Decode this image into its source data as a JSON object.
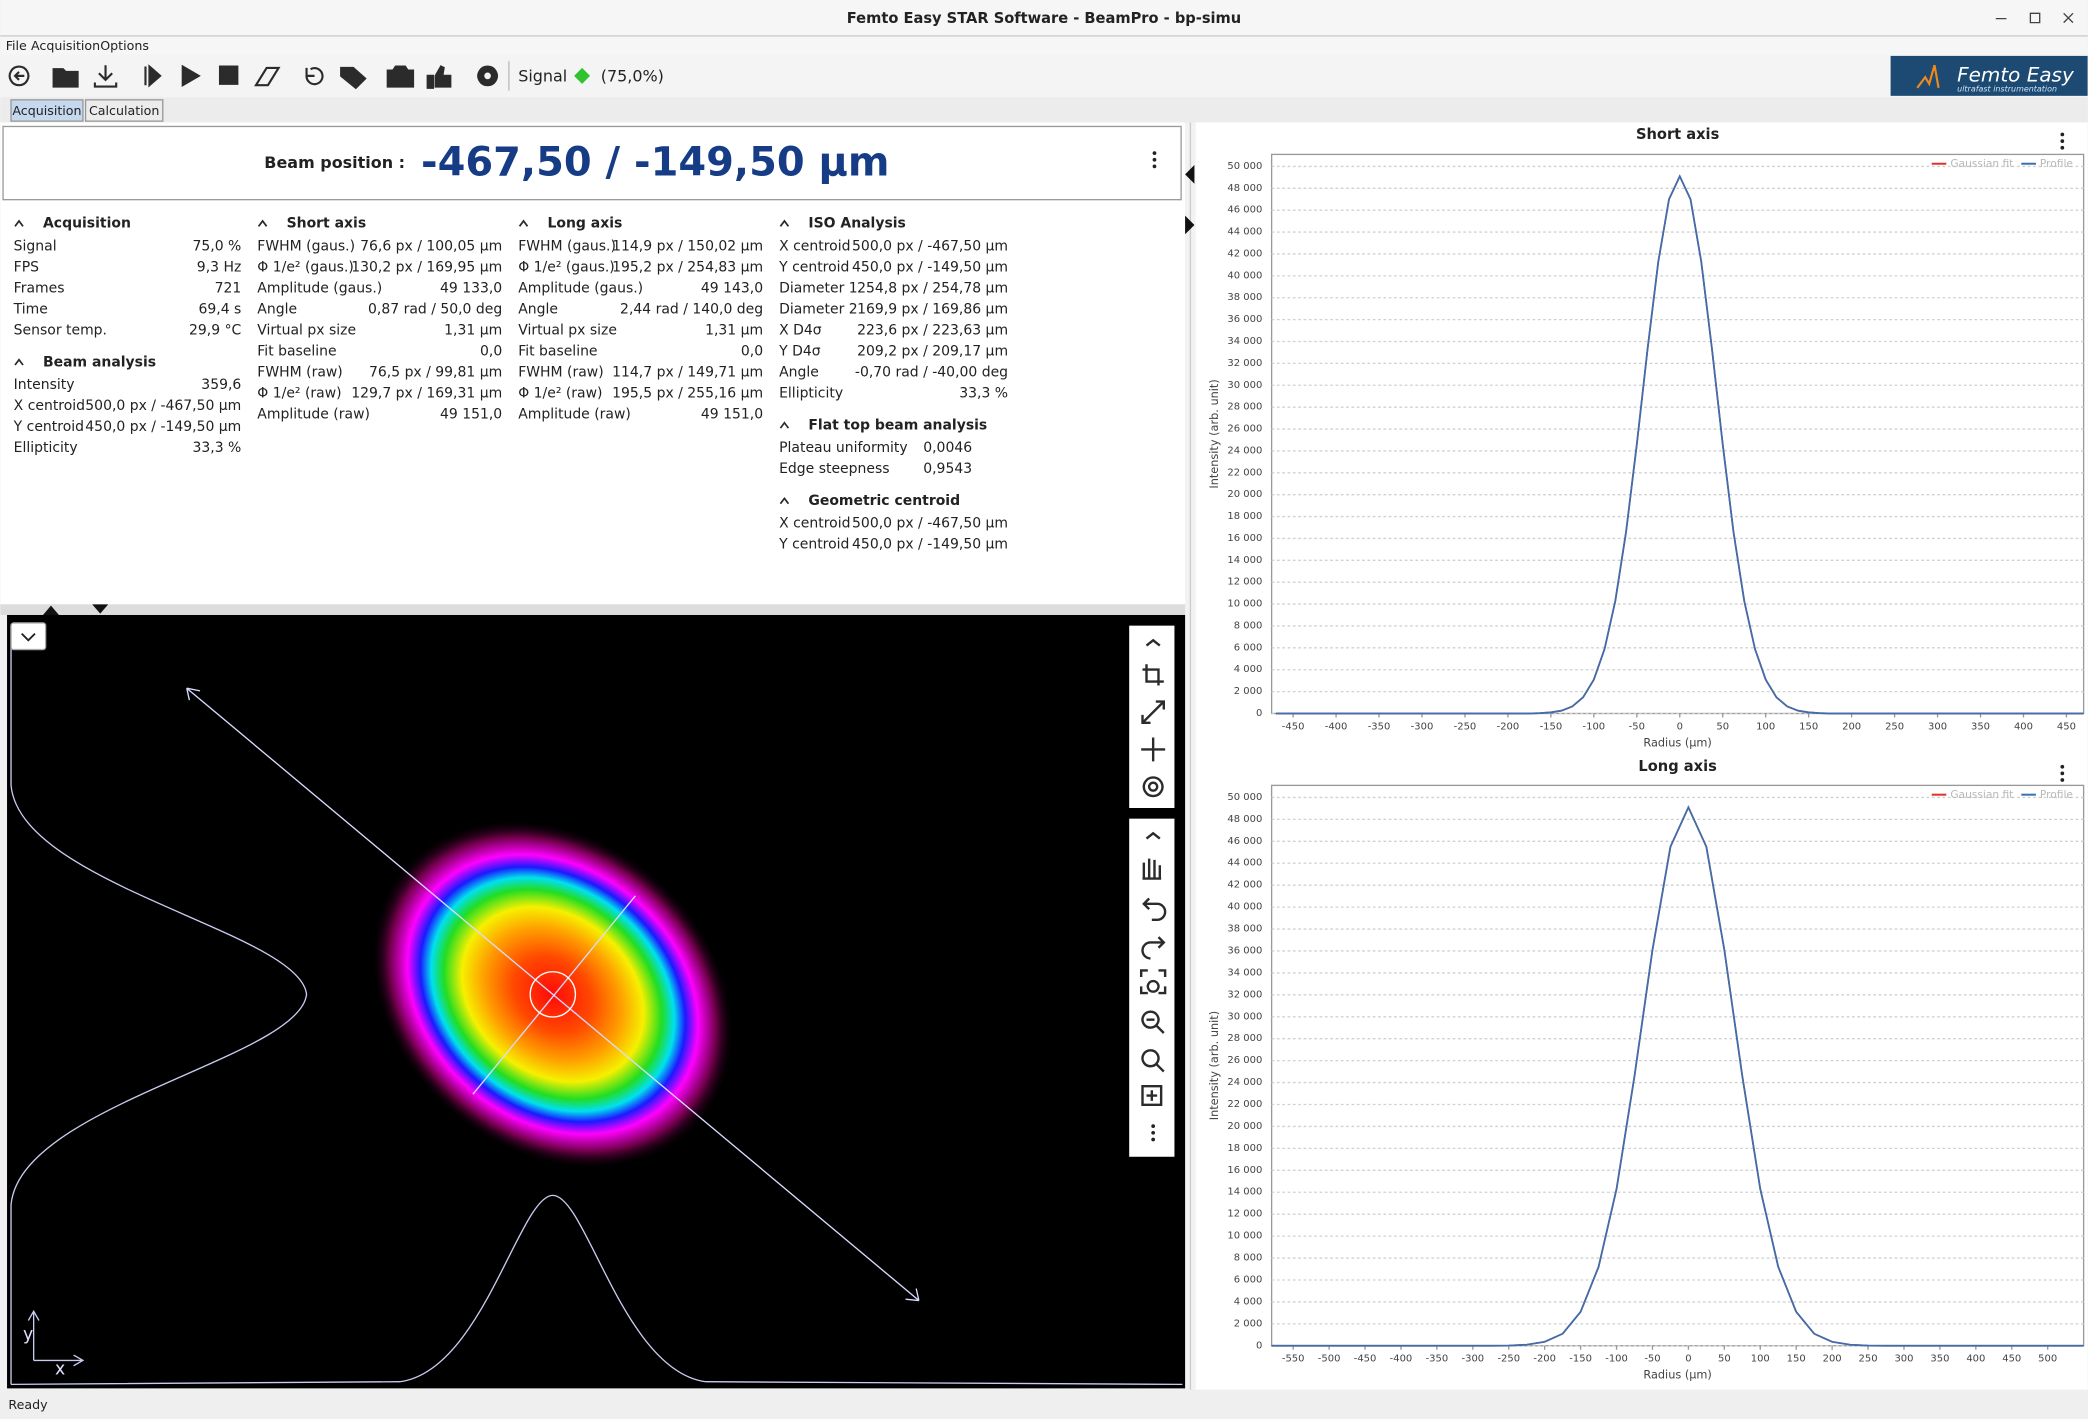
{
  "window": {
    "title": "Femto Easy STAR Software - BeamPro - bp-simu"
  },
  "menu": [
    "File",
    "Acquisition",
    "Options"
  ],
  "toolbar": {
    "signal_label": "Signal",
    "signal_value": "(75,0%)"
  },
  "logo": {
    "name": "Femto Easy",
    "tagline": "ultrafast instrumentation"
  },
  "tabs": [
    "Acquisition",
    "Calculation"
  ],
  "beam_position": {
    "label": "Beam position :",
    "value": "-467,50 / -149,50 µm"
  },
  "columns": [
    [
      {
        "title": "Acquisition",
        "rows": [
          [
            "Signal",
            "75,0 %"
          ],
          [
            "FPS",
            "9,3 Hz"
          ],
          [
            "Frames",
            "721"
          ],
          [
            "Time",
            "69,4 s"
          ],
          [
            "Sensor temp.",
            "29,9 °C"
          ]
        ]
      },
      {
        "title": "Beam analysis",
        "rows": [
          [
            "Intensity",
            "359,6"
          ],
          [
            "X centroid",
            "500,0 px / -467,50 µm"
          ],
          [
            "Y centroid",
            "450,0 px / -149,50 µm"
          ],
          [
            "Ellipticity",
            "33,3 %"
          ]
        ]
      }
    ],
    [
      {
        "title": "Short axis",
        "rows": [
          [
            "FWHM (gaus.)",
            "76,6 px / 100,05 µm"
          ],
          [
            "Φ 1/e² (gaus.)",
            "130,2 px / 169,95 µm"
          ],
          [
            "Amplitude (gaus.)",
            "49 133,0"
          ],
          [
            "Angle",
            "0,87 rad / 50,0 deg"
          ],
          [
            "Virtual px size",
            "1,31 µm"
          ],
          [
            "Fit baseline",
            "0,0"
          ],
          [
            "FWHM (raw)",
            "76,5 px / 99,81 µm"
          ],
          [
            "Φ 1/e² (raw)",
            "129,7 px / 169,31 µm"
          ],
          [
            "Amplitude (raw)",
            "49 151,0"
          ]
        ]
      }
    ],
    [
      {
        "title": "Long axis",
        "rows": [
          [
            "FWHM (gaus.)",
            "114,9 px / 150,02 µm"
          ],
          [
            "Φ 1/e² (gaus.)",
            "195,2 px / 254,83 µm"
          ],
          [
            "Amplitude (gaus.)",
            "49 143,0"
          ],
          [
            "Angle",
            "2,44 rad / 140,0 deg"
          ],
          [
            "Virtual px size",
            "1,31 µm"
          ],
          [
            "Fit baseline",
            "0,0"
          ],
          [
            "FWHM (raw)",
            "114,7 px / 149,71 µm"
          ],
          [
            "Φ 1/e² (raw)",
            "195,5 px / 255,16 µm"
          ],
          [
            "Amplitude (raw)",
            "49 151,0"
          ]
        ]
      }
    ],
    [
      {
        "title": "ISO Analysis",
        "rows": [
          [
            "X centroid",
            "500,0 px / -467,50 µm"
          ],
          [
            "Y centroid",
            "450,0 px / -149,50 µm"
          ],
          [
            "Diameter 1",
            "254,8 px / 254,78 µm"
          ],
          [
            "Diameter 2",
            "169,9 px / 169,86 µm"
          ],
          [
            "X D4σ",
            "223,6 px / 223,63 µm"
          ],
          [
            "Y D4σ",
            "209,2 px / 209,17 µm"
          ],
          [
            "Angle",
            "-0,70 rad / -40,00 deg"
          ],
          [
            "Ellipticity",
            "33,3 %"
          ]
        ]
      },
      {
        "title": "Flat top beam analysis",
        "rows": [
          [
            "Plateau uniformity",
            "0,0046"
          ],
          [
            "Edge steepness",
            "0,9543"
          ]
        ]
      },
      {
        "title": "Geometric centroid",
        "rows": [
          [
            "X centroid",
            "500,0 px / -467,50 µm"
          ],
          [
            "Y centroid",
            "450,0 px / -149,50 µm"
          ]
        ]
      }
    ]
  ],
  "image": {
    "x_label": "x",
    "y_label": "y"
  },
  "status": "Ready",
  "chart_data": [
    {
      "type": "line",
      "title": "Short axis",
      "x_label": "Radius (µm)",
      "y_label": "Intensity (arb. unit)",
      "x": [
        -470,
        -175,
        -162.5,
        -150,
        -137.5,
        -125,
        -112.5,
        -100,
        -87.5,
        -75,
        -62.5,
        -50,
        -37.5,
        -25,
        -12.5,
        0,
        12.5,
        25,
        37.5,
        50,
        62.5,
        75,
        87.5,
        100,
        112.5,
        125,
        137.5,
        150,
        162.5,
        175,
        470
      ],
      "series": [
        {
          "name": "Gaussian fit",
          "color": "#e03030",
          "values": [
            0,
            0,
            30,
            100,
            260,
            650,
            1480,
            3100,
            5900,
            10300,
            16600,
            24600,
            33300,
            41300,
            47000,
            49100,
            47000,
            41300,
            33300,
            24600,
            16600,
            10300,
            5900,
            3100,
            1480,
            650,
            260,
            100,
            30,
            0,
            0
          ]
        },
        {
          "name": "Profile",
          "color": "#3a6fb0",
          "values": [
            0,
            0,
            30,
            100,
            260,
            650,
            1480,
            3100,
            5900,
            10300,
            16600,
            24600,
            33300,
            41300,
            47000,
            49100,
            47000,
            41300,
            33300,
            24600,
            16600,
            10300,
            5900,
            3100,
            1480,
            650,
            260,
            100,
            30,
            0,
            0
          ]
        }
      ],
      "xlim": [
        -475,
        470
      ],
      "xticks": [
        -450,
        -400,
        -350,
        -300,
        -250,
        -200,
        -150,
        -100,
        -50,
        0,
        50,
        100,
        150,
        200,
        250,
        300,
        350,
        400,
        450
      ],
      "ylim": [
        0,
        51100
      ],
      "yticks": [
        0,
        {
          "value": 2000,
          "label": "2 000"
        },
        {
          "value": 4000,
          "label": "4 000"
        },
        {
          "value": 6000,
          "label": "6 000"
        },
        {
          "value": 8000,
          "label": "8 000"
        },
        {
          "value": 10000,
          "label": "10 000"
        },
        {
          "value": 12000,
          "label": "12 000"
        },
        {
          "value": 14000,
          "label": "14 000"
        },
        {
          "value": 16000,
          "label": "16 000"
        },
        {
          "value": 18000,
          "label": "18 000"
        },
        {
          "value": 20000,
          "label": "20 000"
        },
        {
          "value": 22000,
          "label": "22 000"
        },
        {
          "value": 24000,
          "label": "24 000"
        },
        {
          "value": 26000,
          "label": "26 000"
        },
        {
          "value": 28000,
          "label": "28 000"
        },
        {
          "value": 30000,
          "label": "30 000"
        },
        {
          "value": 32000,
          "label": "32 000"
        },
        {
          "value": 34000,
          "label": "34 000"
        },
        {
          "value": 36000,
          "label": "36 000"
        },
        {
          "value": 38000,
          "label": "38 000"
        },
        {
          "value": 40000,
          "label": "40 000"
        },
        {
          "value": 42000,
          "label": "42 000"
        },
        {
          "value": 44000,
          "label": "44 000"
        },
        {
          "value": 46000,
          "label": "46 000"
        },
        {
          "value": 48000,
          "label": "48 000"
        },
        {
          "value": 50000,
          "label": "50 000"
        }
      ],
      "grid": true,
      "legend": "top-right"
    },
    {
      "type": "line",
      "title": "Long axis",
      "x_label": "Radius (µm)",
      "y_label": "Intensity (arb. unit)",
      "x": [
        -580,
        -275,
        -250,
        -225,
        -200,
        -175,
        -150,
        -125,
        -100,
        -75,
        -50,
        -25,
        0,
        25,
        50,
        75,
        100,
        125,
        150,
        175,
        200,
        225,
        250,
        275,
        550
      ],
      "series": [
        {
          "name": "Gaussian fit",
          "color": "#e03030",
          "values": [
            0,
            0,
            20,
            100,
            360,
            1100,
            3100,
            7200,
            14300,
            24600,
            36100,
            45500,
            49100,
            45500,
            36100,
            24600,
            14300,
            7200,
            3100,
            1100,
            360,
            100,
            20,
            0,
            0
          ]
        },
        {
          "name": "Profile",
          "color": "#3a6fb0",
          "values": [
            0,
            0,
            20,
            100,
            360,
            1100,
            3100,
            7200,
            14300,
            24600,
            36100,
            45500,
            49100,
            45500,
            36100,
            24600,
            14300,
            7200,
            3100,
            1100,
            360,
            100,
            20,
            0,
            0
          ]
        }
      ],
      "xlim": [
        -580,
        550
      ],
      "xticks": [
        -550,
        -500,
        -450,
        -400,
        -350,
        -300,
        -250,
        -200,
        -150,
        -100,
        -50,
        0,
        50,
        100,
        150,
        200,
        250,
        300,
        350,
        400,
        450,
        500
      ],
      "ylim": [
        0,
        51100
      ],
      "yticks": [
        0,
        {
          "value": 2000,
          "label": "2 000"
        },
        {
          "value": 4000,
          "label": "4 000"
        },
        {
          "value": 6000,
          "label": "6 000"
        },
        {
          "value": 8000,
          "label": "8 000"
        },
        {
          "value": 10000,
          "label": "10 000"
        },
        {
          "value": 12000,
          "label": "12 000"
        },
        {
          "value": 14000,
          "label": "14 000"
        },
        {
          "value": 16000,
          "label": "16 000"
        },
        {
          "value": 18000,
          "label": "18 000"
        },
        {
          "value": 20000,
          "label": "20 000"
        },
        {
          "value": 22000,
          "label": "22 000"
        },
        {
          "value": 24000,
          "label": "24 000"
        },
        {
          "value": 26000,
          "label": "26 000"
        },
        {
          "value": 28000,
          "label": "28 000"
        },
        {
          "value": 30000,
          "label": "30 000"
        },
        {
          "value": 32000,
          "label": "32 000"
        },
        {
          "value": 34000,
          "label": "34 000"
        },
        {
          "value": 36000,
          "label": "36 000"
        },
        {
          "value": 38000,
          "label": "38 000"
        },
        {
          "value": 40000,
          "label": "40 000"
        },
        {
          "value": 42000,
          "label": "42 000"
        },
        {
          "value": 44000,
          "label": "44 000"
        },
        {
          "value": 46000,
          "label": "46 000"
        },
        {
          "value": 48000,
          "label": "48 000"
        },
        {
          "value": 50000,
          "label": "50 000"
        }
      ],
      "grid": true,
      "legend": "top-right"
    }
  ]
}
